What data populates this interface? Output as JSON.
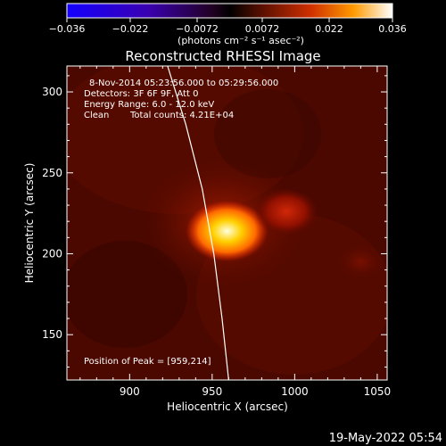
{
  "chart_data": {
    "type": "heatmap",
    "title": "Reconstructed RHESSI Image",
    "xlabel": "Heliocentric X (arcsec)",
    "ylabel": "Heliocentric Y (arcsec)",
    "xlim": [
      862,
      1056
    ],
    "ylim": [
      122,
      316
    ],
    "xticks": [
      900,
      950,
      1000,
      1050
    ],
    "yticks": [
      150,
      200,
      250,
      300
    ],
    "colorbar": {
      "range": [
        -0.036,
        0.036
      ],
      "ticks": [
        -0.036,
        -0.022,
        -0.0072,
        0.0072,
        0.022,
        0.036
      ],
      "tick_labels": [
        "−0.036",
        "−0.022",
        "−0.0072",
        "0.0072",
        "0.022",
        "0.036"
      ],
      "units_label": "(photons cm⁻² s⁻¹ asec⁻²)"
    },
    "annotations": {
      "time_range": "8-Nov-2014 05:23:56.000 to 05:29:56.000",
      "detectors": "Detectors: 3F 6F 9F, Att 0",
      "energy": "Energy Range: 6.0 - 12.0 keV",
      "clean": "Clean",
      "total_counts": "Total counts: 4.21E+04",
      "peak": "Position of Peak = [959,214]"
    },
    "sources": [
      {
        "x": 959,
        "y": 214,
        "relative_intensity": 1.0
      },
      {
        "x": 995,
        "y": 226,
        "relative_intensity": 0.45
      },
      {
        "x": 1040,
        "y": 195,
        "relative_intensity": 0.2
      }
    ],
    "limb_points": [
      [
        923,
        316
      ],
      [
        934,
        280
      ],
      [
        944,
        240
      ],
      [
        951,
        200
      ],
      [
        956,
        160
      ],
      [
        960,
        122
      ]
    ],
    "footer_timestamp": "19-May-2022 05:54"
  }
}
